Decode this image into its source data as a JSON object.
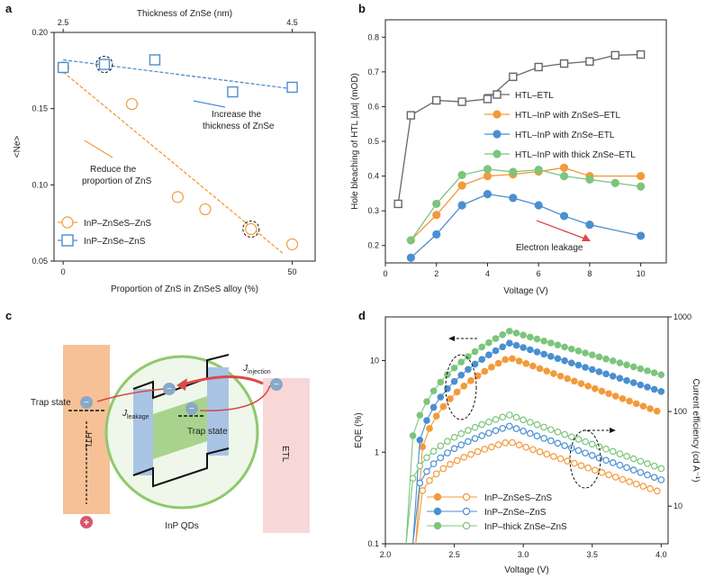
{
  "panels": {
    "a": "a",
    "b": "b",
    "c": "c",
    "d": "d"
  },
  "chart_data": [
    {
      "id": "a",
      "type": "scatter",
      "xlabel": "Proportion of ZnS in ZnSeS alloy (%)",
      "x2label": "Thickness of ZnSe (nm)",
      "ylabel": "<Ne>",
      "xlim": [
        -2,
        55
      ],
      "ylim": [
        0.05,
        0.2
      ],
      "xticks": [
        0,
        50
      ],
      "x2ticks": [
        "2.5",
        "4.5"
      ],
      "yticks": [
        "0.05",
        "0.10",
        "0.15",
        "0.20"
      ],
      "legend_position": "bottom-left",
      "series": [
        {
          "name": "InP–ZnSeS–ZnS",
          "color": "#f39a3a",
          "marker": "circle",
          "x": [
            0,
            15,
            25,
            31,
            41,
            50
          ],
          "y": [
            0.177,
            0.153,
            0.092,
            0.084,
            0.071,
            0.061
          ],
          "fit": [
            [
              0,
              0.174
            ],
            [
              48,
              0.055
            ]
          ]
        },
        {
          "name": "InP–ZnSe–ZnS",
          "color": "#4a8fd0",
          "marker": "square",
          "x": [
            0,
            9,
            20,
            37,
            50
          ],
          "y": [
            0.177,
            0.179,
            0.182,
            0.161,
            0.164
          ],
          "fit": [
            [
              0,
              0.182
            ],
            [
              50,
              0.163
            ]
          ]
        }
      ],
      "annotations": {
        "increase": [
          "Increase the",
          "thickness of ZnSe"
        ],
        "reduce": [
          "Reduce the",
          "proportion of ZnS"
        ]
      }
    },
    {
      "id": "b",
      "type": "line",
      "xlabel": "Voltage (V)",
      "ylabel": "Hole bleaching of HTL |Δα| (mOD)",
      "xlim": [
        0,
        11
      ],
      "ylim": [
        0.15,
        0.85
      ],
      "xticks": [
        0,
        2,
        4,
        6,
        8,
        10
      ],
      "yticks": [
        0.2,
        0.3,
        0.4,
        0.5,
        0.6,
        0.7,
        0.8
      ],
      "legend_position": "right",
      "series": [
        {
          "name": "HTL–ETL",
          "color": "#666666",
          "marker": "square-open",
          "x": [
            0.5,
            1,
            2,
            3,
            4,
            5,
            6,
            7,
            8,
            9,
            10
          ],
          "y": [
            0.32,
            0.575,
            0.618,
            0.614,
            0.622,
            0.686,
            0.714,
            0.724,
            0.73,
            0.748,
            0.75
          ]
        },
        {
          "name": "HTL–InP with ZnSeS–ETL",
          "color": "#f39a3a",
          "marker": "circle",
          "x": [
            1,
            2,
            3,
            4,
            5,
            6,
            7,
            8,
            10
          ],
          "y": [
            0.215,
            0.288,
            0.373,
            0.4,
            0.405,
            0.413,
            0.424,
            0.4,
            0.4
          ]
        },
        {
          "name": "HTL–InP with ZnSe–ETL",
          "color": "#4a8fd0",
          "marker": "circle",
          "x": [
            1,
            2,
            3,
            4,
            5,
            6,
            7,
            8,
            10
          ],
          "y": [
            0.165,
            0.232,
            0.316,
            0.348,
            0.337,
            0.316,
            0.285,
            0.26,
            0.228
          ]
        },
        {
          "name": "HTL–InP with thick ZnSe–ETL",
          "color": "#7cc57c",
          "marker": "circle",
          "x": [
            1,
            2,
            3,
            4,
            5,
            6,
            7,
            8,
            9,
            10
          ],
          "y": [
            0.215,
            0.32,
            0.403,
            0.42,
            0.412,
            0.418,
            0.4,
            0.39,
            0.38,
            0.37
          ]
        }
      ],
      "annotations": {
        "leakage": "Electron leakage"
      }
    },
    {
      "id": "d",
      "type": "line",
      "xlabel": "Voltage (V)",
      "ylabel": "EQE (%)",
      "y2label": "Current efficiency (cd A⁻¹)",
      "xlim": [
        2.0,
        4.05
      ],
      "ylim_log": [
        0.1,
        30
      ],
      "y2lim_log": [
        4,
        1000
      ],
      "xticks": [
        "2.0",
        "2.5",
        "3.0",
        "3.5",
        "4.0"
      ],
      "yticks": [
        "0.1",
        "1",
        "10"
      ],
      "y2ticks": [
        "10",
        "100",
        "1000"
      ],
      "legend_position": "bottom-left",
      "series": [
        {
          "name": "InP–ZnSeS–ZnS",
          "color": "#f39a3a",
          "peak_eqe": 10.8,
          "peak_ce": 48,
          "end_eqe": 2.7,
          "end_ce": 14
        },
        {
          "name": "InP–ZnSe–ZnS",
          "color": "#4a8fd0",
          "peak_eqe": 15.5,
          "peak_ce": 70,
          "end_eqe": 4.6,
          "end_ce": 19
        },
        {
          "name": "InP–thick ZnSe–ZnS",
          "color": "#7cc57c",
          "peak_eqe": 21,
          "peak_ce": 92,
          "end_eqe": 7.0,
          "end_ce": 25
        }
      ]
    }
  ],
  "diagram_c": {
    "htl": "HTL",
    "etl": "ETL",
    "trap_left": "Trap state",
    "trap_right": "Trap state",
    "j_leakage": "J",
    "j_leakage_sub": "leakage",
    "j_injection": "J",
    "j_injection_sub": "injection",
    "qd_label": "InP QDs",
    "minus": "−",
    "plus": "+"
  }
}
